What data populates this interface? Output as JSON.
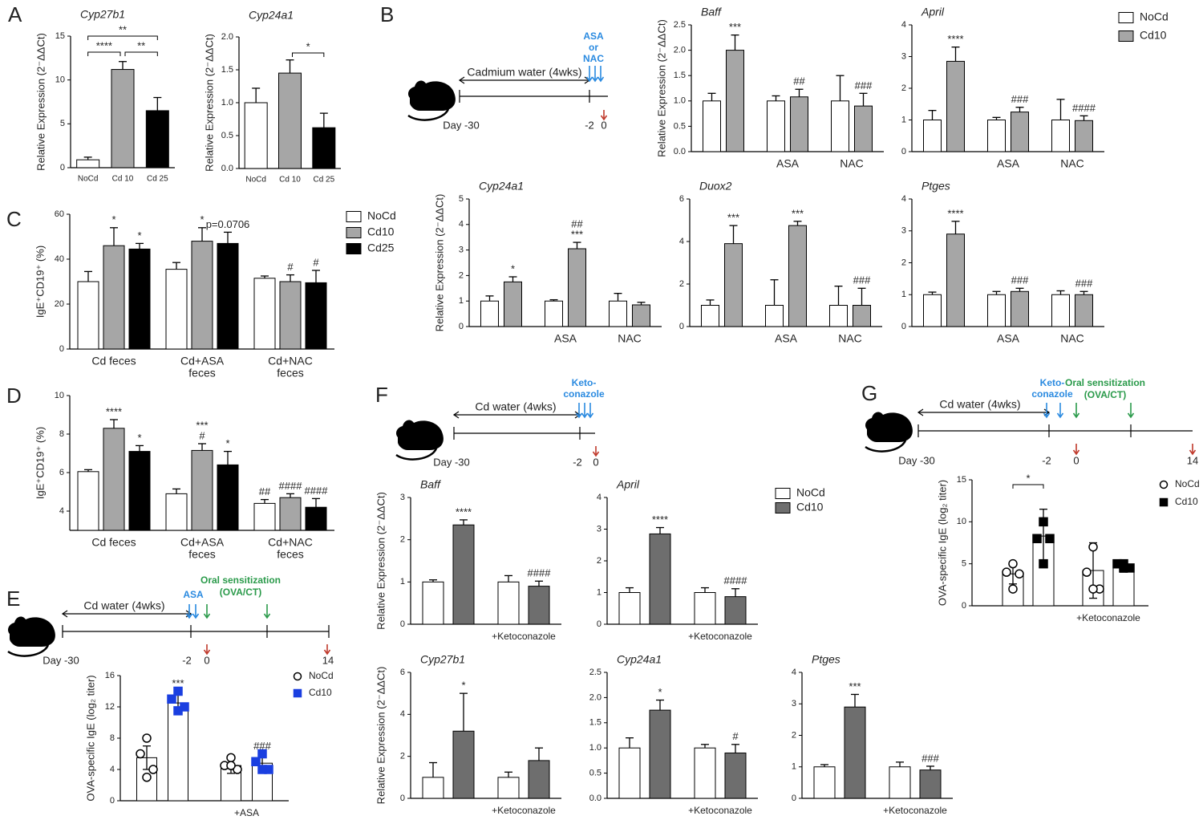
{
  "panels": [
    "A",
    "B",
    "C",
    "D",
    "E",
    "F",
    "G"
  ],
  "timelines": [
    {
      "water": "Cadmium water (4wks)",
      "treatment": [
        "ASA",
        "or",
        "NAC"
      ],
      "days": [
        "Day -30",
        "-2",
        "0"
      ]
    },
    {
      "water": "Cd water (4wks)",
      "treatment": [
        "Keto-",
        "conazole"
      ],
      "days": [
        "Day -30",
        "-2",
        "0"
      ]
    },
    {
      "water": "Cd water (4wks)",
      "treatment": [
        "ASA"
      ],
      "sensitization": [
        "Oral sensitization",
        "(OVA/CT)"
      ],
      "days": [
        "Day -30",
        "-2",
        "0",
        "14"
      ]
    },
    {
      "water": "Cd water (4wks)",
      "treatment": [
        "Keto-",
        "conazole"
      ],
      "sensitization": [
        "Oral sensitization",
        "(OVA/CT)"
      ],
      "days": [
        "Day -30",
        "-2",
        "0",
        "14"
      ]
    }
  ],
  "chart_data": [
    {
      "type": "bar",
      "title": "Cyp27b1",
      "ylabel": "Relative Expression (2⁻ΔΔCt)",
      "categories": [
        "NoCd",
        "Cd 10",
        "Cd 25"
      ],
      "series": [
        {
          "colors": [
            "#ffffff",
            "#a6a6a6",
            "#000000"
          ],
          "values": [
            0.9,
            11.2,
            6.5
          ],
          "errors": [
            0.3,
            0.9,
            1.5
          ]
        }
      ],
      "ylim": [
        0,
        15
      ],
      "yticks": [
        0,
        5,
        10,
        15
      ],
      "brackets": [
        {
          "text": "****",
          "from": 0,
          "to": 1
        },
        {
          "text": "**",
          "from": 1,
          "to": 2
        },
        {
          "text": "**",
          "from": 0,
          "to": 2
        }
      ]
    },
    {
      "type": "bar",
      "title": "Cyp24a1",
      "ylabel": "Relative Expression (2⁻ΔΔCt)",
      "categories": [
        "NoCd",
        "Cd 10",
        "Cd 25"
      ],
      "series": [
        {
          "colors": [
            "#ffffff",
            "#a6a6a6",
            "#000000"
          ],
          "values": [
            1.0,
            1.45,
            0.62
          ],
          "errors": [
            0.22,
            0.2,
            0.22
          ]
        }
      ],
      "ylim": [
        0,
        2
      ],
      "yticks": [
        {
          "value": 0,
          "label": "0.0"
        },
        0.5,
        {
          "value": 1,
          "label": "1.0"
        },
        1.5,
        {
          "value": 2,
          "label": "2.0"
        }
      ],
      "brackets": [
        {
          "text": "*",
          "from": 1,
          "to": 2
        }
      ]
    },
    {
      "type": "bar",
      "title": "Baff",
      "ylabel": "Relative Expression (2⁻ΔΔCt)",
      "categories": [
        null,
        "ASA",
        "NAC"
      ],
      "series": [
        {
          "color": "#ffffff",
          "values": [
            1.0,
            1.0,
            1.0
          ],
          "errors": [
            0.15,
            0.1,
            0.5
          ]
        },
        {
          "color": "#a6a6a6",
          "values": [
            2.0,
            1.08,
            0.9
          ],
          "errors": [
            0.3,
            0.15,
            0.25
          ],
          "annotations": [
            "***",
            "##",
            "###"
          ]
        }
      ],
      "ylim": [
        0,
        2.5
      ],
      "yticks": [
        {
          "value": 0,
          "label": "0.0"
        },
        0.5,
        {
          "value": 1,
          "label": "1.0"
        },
        1.5,
        {
          "value": 2,
          "label": "2.0"
        },
        2.5
      ]
    },
    {
      "type": "bar",
      "title": "April",
      "categories": [
        null,
        "ASA",
        "NAC"
      ],
      "legend": true,
      "series": [
        {
          "name": "NoCd",
          "color": "#ffffff",
          "values": [
            1.0,
            1.0,
            1.0
          ],
          "errors": [
            0.3,
            0.08,
            0.65
          ]
        },
        {
          "name": "Cd10",
          "color": "#a6a6a6",
          "values": [
            2.85,
            1.25,
            0.98
          ],
          "errors": [
            0.45,
            0.15,
            0.15
          ],
          "annotations": [
            "****",
            "###",
            "####"
          ]
        }
      ],
      "ylim": [
        0,
        4
      ],
      "yticks": [
        0,
        1,
        2,
        3,
        4
      ]
    },
    {
      "type": "bar",
      "title": "Cyp24a1",
      "ylabel": "Relative Expression (2⁻ΔΔCt)",
      "categories": [
        null,
        "ASA",
        "NAC"
      ],
      "series": [
        {
          "color": "#ffffff",
          "values": [
            1.0,
            1.0,
            1.0
          ],
          "errors": [
            0.2,
            0.05,
            0.3
          ]
        },
        {
          "color": "#a6a6a6",
          "values": [
            1.75,
            3.05,
            0.85
          ],
          "errors": [
            0.2,
            0.25,
            0.1
          ],
          "annotations": [
            "*",
            [
              "##",
              "***"
            ],
            null
          ]
        }
      ],
      "ylim": [
        0,
        5
      ],
      "yticks": [
        0,
        1,
        2,
        3,
        4,
        5
      ]
    },
    {
      "type": "bar",
      "title": "Duox2",
      "categories": [
        null,
        "ASA",
        "NAC"
      ],
      "series": [
        {
          "color": "#ffffff",
          "values": [
            1.0,
            1.0,
            1.0
          ],
          "errors": [
            0.25,
            1.2,
            0.9
          ]
        },
        {
          "color": "#a6a6a6",
          "values": [
            3.9,
            4.75,
            1.0
          ],
          "errors": [
            0.85,
            0.2,
            0.8
          ],
          "annotations": [
            "***",
            "***",
            "###"
          ]
        }
      ],
      "ylim": [
        0,
        6
      ],
      "yticks": [
        0,
        2,
        4,
        6
      ]
    },
    {
      "type": "bar",
      "title": "Ptges",
      "categories": [
        null,
        "ASA",
        "NAC"
      ],
      "series": [
        {
          "color": "#ffffff",
          "values": [
            1.0,
            1.0,
            1.0
          ],
          "errors": [
            0.08,
            0.1,
            0.12
          ]
        },
        {
          "color": "#a6a6a6",
          "values": [
            2.9,
            1.1,
            1.0
          ],
          "errors": [
            0.4,
            0.1,
            0.1
          ],
          "annotations": [
            "****",
            "###",
            "###"
          ]
        }
      ],
      "ylim": [
        0,
        4
      ],
      "yticks": [
        0,
        1,
        2,
        3,
        4
      ]
    },
    {
      "type": "bar",
      "ylabel": "IgE⁺CD19⁺ (%)",
      "categories": [
        "Cd feces",
        [
          "Cd+ASA",
          "feces"
        ],
        [
          "Cd+NAC",
          "feces"
        ]
      ],
      "legend": true,
      "series": [
        {
          "name": "NoCd",
          "color": "#ffffff",
          "values": [
            30,
            35.5,
            31.5
          ],
          "errors": [
            4.5,
            3,
            1
          ]
        },
        {
          "name": "Cd10",
          "color": "#a6a6a6",
          "values": [
            46,
            48,
            30
          ],
          "errors": [
            8,
            6,
            3
          ],
          "annotations": [
            "*",
            "*",
            "#"
          ]
        },
        {
          "name": "Cd25",
          "color": "#000000",
          "values": [
            44.5,
            47,
            29.5
          ],
          "errors": [
            2.5,
            5,
            5.5
          ],
          "annotations": [
            "*",
            "p=0.0706",
            "#"
          ]
        }
      ],
      "ylim": [
        0,
        60
      ],
      "yticks": [
        0,
        20,
        40,
        60
      ]
    },
    {
      "type": "bar",
      "ylabel": "IgE⁺CD19⁺ (%)",
      "categories": [
        "Cd feces",
        [
          "Cd+ASA",
          "feces"
        ],
        [
          "Cd+NAC",
          "feces"
        ]
      ],
      "series": [
        {
          "color": "#ffffff",
          "values": [
            6.05,
            4.9,
            4.4
          ],
          "errors": [
            0.1,
            0.25,
            0.2
          ],
          "annotations": [
            null,
            null,
            "##"
          ]
        },
        {
          "color": "#a6a6a6",
          "values": [
            8.3,
            7.15,
            4.7
          ],
          "errors": [
            0.45,
            0.35,
            0.2
          ],
          "annotations": [
            "****",
            [
              "***",
              "#"
            ],
            "####"
          ]
        },
        {
          "color": "#000000",
          "values": [
            7.1,
            6.4,
            4.2
          ],
          "errors": [
            0.3,
            0.7,
            0.45
          ],
          "annotations": [
            "*",
            "*",
            "####"
          ]
        }
      ],
      "ylim": [
        3,
        10
      ],
      "yticks": [
        4,
        6,
        8,
        10
      ]
    },
    {
      "type": "dotbar",
      "ylabel": "OVA-specific IgE (log₂ titer)",
      "categories": [
        null,
        "+ASA"
      ],
      "legend": true,
      "series": [
        {
          "name": "NoCd",
          "color": "#000000",
          "marker": "circle",
          "values": [
            5.5,
            4.5
          ],
          "errors": [
            1.5,
            1.0
          ],
          "points": [
            [
              8,
              6,
              4,
              3
            ],
            [
              5.5,
              4.5,
              4,
              4.5
            ]
          ]
        },
        {
          "name": "Cd10",
          "color": "#1a3fe0",
          "marker": "square",
          "values": [
            12.5,
            4.8
          ],
          "errors": [
            1.2,
            1.2
          ],
          "points": [
            [
              14,
              13,
              12,
              11.5
            ],
            [
              6,
              5,
              4,
              4
            ]
          ],
          "annotations": [
            "***",
            "###"
          ]
        }
      ],
      "ylim": [
        0,
        16
      ],
      "yticks": [
        0,
        4,
        8,
        12,
        16
      ]
    },
    {
      "type": "bar",
      "title": "Baff",
      "ylabel": "Relative Expression (2⁻ΔΔCt)",
      "categories": [
        null,
        "+Ketoconazole"
      ],
      "legend": true,
      "series": [
        {
          "name": "NoCd",
          "color": "#ffffff",
          "values": [
            1.0,
            1.0
          ],
          "errors": [
            0.05,
            0.15
          ]
        },
        {
          "name": "Cd10",
          "color": "#6e6e6e",
          "values": [
            2.35,
            0.9
          ],
          "errors": [
            0.12,
            0.12
          ],
          "annotations": [
            "****",
            "####"
          ]
        }
      ],
      "ylim": [
        0,
        3
      ],
      "yticks": [
        0,
        1,
        2,
        3
      ]
    },
    {
      "type": "bar",
      "title": "April",
      "categories": [
        null,
        "+Ketoconazole"
      ],
      "series": [
        {
          "color": "#ffffff",
          "values": [
            1.0,
            1.0
          ],
          "errors": [
            0.15,
            0.15
          ]
        },
        {
          "color": "#6e6e6e",
          "values": [
            2.85,
            0.87
          ],
          "errors": [
            0.2,
            0.25
          ],
          "annotations": [
            "****",
            "####"
          ]
        }
      ],
      "ylim": [
        0,
        4
      ],
      "yticks": [
        0,
        1,
        2,
        3,
        4
      ]
    },
    {
      "type": "bar",
      "title": "Cyp27b1",
      "ylabel": "Relative Expression (2⁻ΔΔCt)",
      "categories": [
        null,
        "+Ketoconazole"
      ],
      "series": [
        {
          "color": "#ffffff",
          "values": [
            1.0,
            1.0
          ],
          "errors": [
            0.7,
            0.25
          ]
        },
        {
          "color": "#6e6e6e",
          "values": [
            3.2,
            1.8
          ],
          "errors": [
            1.8,
            0.6
          ],
          "annotations": [
            "*",
            null
          ]
        }
      ],
      "ylim": [
        0,
        6
      ],
      "yticks": [
        0,
        2,
        4,
        6
      ]
    },
    {
      "type": "bar",
      "title": "Cyp24a1",
      "categories": [
        null,
        "+Ketoconazole"
      ],
      "series": [
        {
          "color": "#ffffff",
          "values": [
            1.0,
            1.0
          ],
          "errors": [
            0.2,
            0.07
          ]
        },
        {
          "color": "#6e6e6e",
          "values": [
            1.75,
            0.9
          ],
          "errors": [
            0.2,
            0.17
          ],
          "annotations": [
            "*",
            "#"
          ]
        }
      ],
      "ylim": [
        0,
        2.5
      ],
      "yticks": [
        {
          "value": 0,
          "label": "0.0"
        },
        0.5,
        {
          "value": 1,
          "label": "1.0"
        },
        1.5,
        {
          "value": 2,
          "label": "2.0"
        },
        2.5
      ]
    },
    {
      "type": "bar",
      "title": "Ptges",
      "categories": [
        null,
        "+Ketoconazole"
      ],
      "series": [
        {
          "color": "#ffffff",
          "values": [
            1.0,
            1.0
          ],
          "errors": [
            0.07,
            0.15
          ]
        },
        {
          "color": "#6e6e6e",
          "values": [
            2.9,
            0.9
          ],
          "errors": [
            0.4,
            0.12
          ],
          "annotations": [
            "***",
            "###"
          ]
        }
      ],
      "ylim": [
        0,
        4
      ],
      "yticks": [
        0,
        1,
        2,
        3,
        4
      ]
    },
    {
      "type": "dotbar",
      "ylabel": "OVA-specific IgE (log₂ titer)",
      "categories": [
        null,
        "+Ketoconazole"
      ],
      "legend": true,
      "series": [
        {
          "name": "NoCd",
          "color": "#000000",
          "marker": "circle",
          "values": [
            3.8,
            4.2
          ],
          "errors": [
            1.2,
            3.3
          ],
          "points": [
            [
              5,
              4,
              3.8,
              2
            ],
            [
              7,
              4,
              2,
              2
            ]
          ]
        },
        {
          "name": "Cd10",
          "color": "#000000",
          "marker": "square",
          "values": [
            8.3,
            4.5
          ],
          "errors": [
            3.2,
            0.5
          ],
          "points": [
            [
              10,
              8,
              8,
              5
            ],
            [
              5,
              5,
              4.5,
              4.5
            ]
          ]
        }
      ],
      "ylim": [
        0,
        15
      ],
      "yticks": [
        0,
        5,
        10,
        15
      ],
      "brackets": [
        {
          "text": "*",
          "category": 0
        }
      ]
    }
  ]
}
